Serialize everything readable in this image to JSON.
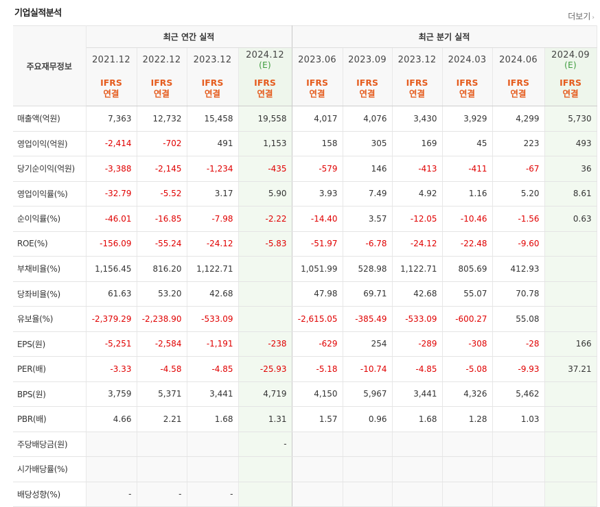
{
  "section_title": "기업실적분석",
  "more_link": "더보기",
  "more_arrow": "›",
  "header": {
    "row_label": "주요재무정보",
    "annual_group": "최근 연간 실적",
    "quarterly_group": "최근 분기 실적",
    "periods": [
      {
        "date": "2021.12",
        "est": ""
      },
      {
        "date": "2022.12",
        "est": ""
      },
      {
        "date": "2023.12",
        "est": ""
      },
      {
        "date": "2024.12",
        "est": "(E)"
      },
      {
        "date": "2023.06",
        "est": ""
      },
      {
        "date": "2023.09",
        "est": ""
      },
      {
        "date": "2023.12",
        "est": ""
      },
      {
        "date": "2024.03",
        "est": ""
      },
      {
        "date": "2024.06",
        "est": ""
      },
      {
        "date": "2024.09",
        "est": "(E)"
      }
    ],
    "basis_line1": "IFRS",
    "basis_line2": "연결"
  },
  "rows": [
    {
      "label": "매출액(억원)",
      "values": [
        "7,363",
        "12,732",
        "15,458",
        "19,558",
        "4,017",
        "4,076",
        "3,430",
        "3,929",
        "4,299",
        "5,730"
      ]
    },
    {
      "label": "영업이익(억원)",
      "values": [
        "-2,414",
        "-702",
        "491",
        "1,153",
        "158",
        "305",
        "169",
        "45",
        "223",
        "493"
      ]
    },
    {
      "label": "당기순이익(억원)",
      "values": [
        "-3,388",
        "-2,145",
        "-1,234",
        "-435",
        "-579",
        "146",
        "-413",
        "-411",
        "-67",
        "36"
      ]
    },
    {
      "label": "영업이익률(%)",
      "values": [
        "-32.79",
        "-5.52",
        "3.17",
        "5.90",
        "3.93",
        "7.49",
        "4.92",
        "1.16",
        "5.20",
        "8.61"
      ]
    },
    {
      "label": "순이익률(%)",
      "values": [
        "-46.01",
        "-16.85",
        "-7.98",
        "-2.22",
        "-14.40",
        "3.57",
        "-12.05",
        "-10.46",
        "-1.56",
        "0.63"
      ]
    },
    {
      "label": "ROE(%)",
      "values": [
        "-156.09",
        "-55.24",
        "-24.12",
        "-5.83",
        "-51.97",
        "-6.78",
        "-24.12",
        "-22.48",
        "-9.60",
        ""
      ]
    },
    {
      "label": "부채비율(%)",
      "values": [
        "1,156.45",
        "816.20",
        "1,122.71",
        "",
        "1,051.99",
        "528.98",
        "1,122.71",
        "805.69",
        "412.93",
        ""
      ]
    },
    {
      "label": "당좌비율(%)",
      "values": [
        "61.63",
        "53.20",
        "42.68",
        "",
        "47.98",
        "69.71",
        "42.68",
        "55.07",
        "70.78",
        ""
      ]
    },
    {
      "label": "유보율(%)",
      "values": [
        "-2,379.29",
        "-2,238.90",
        "-533.09",
        "",
        "-2,615.05",
        "-385.49",
        "-533.09",
        "-600.27",
        "55.08",
        ""
      ]
    },
    {
      "label": "EPS(원)",
      "values": [
        "-5,251",
        "-2,584",
        "-1,191",
        "-238",
        "-629",
        "254",
        "-289",
        "-308",
        "-28",
        "166"
      ]
    },
    {
      "label": "PER(배)",
      "values": [
        "-3.33",
        "-4.58",
        "-4.85",
        "-25.93",
        "-5.18",
        "-10.74",
        "-4.85",
        "-5.08",
        "-9.93",
        "37.21"
      ]
    },
    {
      "label": "BPS(원)",
      "values": [
        "3,759",
        "5,371",
        "3,441",
        "4,719",
        "4,150",
        "5,967",
        "3,441",
        "4,326",
        "5,462",
        ""
      ]
    },
    {
      "label": "PBR(배)",
      "values": [
        "4.66",
        "2.21",
        "1.68",
        "1.31",
        "1.57",
        "0.96",
        "1.68",
        "1.28",
        "1.03",
        ""
      ]
    },
    {
      "label": "주당배당금(원)",
      "values": [
        "",
        "",
        "",
        "-",
        "",
        "",
        "",
        "",
        "",
        ""
      ]
    },
    {
      "label": "시가배당률(%)",
      "values": [
        "",
        "",
        "",
        "",
        "",
        "",
        "",
        "",
        "",
        ""
      ]
    },
    {
      "label": "배당성향(%)",
      "values": [
        "-",
        "-",
        "-",
        "",
        "",
        "",
        "",
        "",
        "",
        ""
      ]
    }
  ],
  "colors": {
    "negative": "#e00000",
    "basis": "#e55c1e",
    "estimate_bg": "#f2f9f0",
    "estimate_text": "#3c9b3c"
  }
}
